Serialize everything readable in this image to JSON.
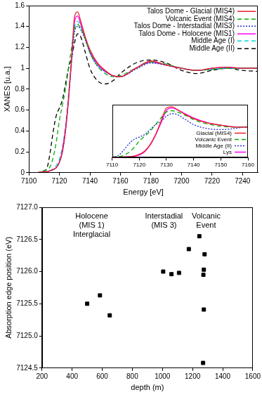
{
  "chart_data": [
    {
      "type": "line",
      "x_label": "Energy [eV]",
      "y_label": "XANES [u.a.]",
      "x": [
        7100,
        7105,
        7110,
        7112,
        7114,
        7116,
        7118,
        7120,
        7122,
        7124,
        7126,
        7128,
        7130,
        7132,
        7134,
        7137,
        7140,
        7145,
        7150,
        7155,
        7160,
        7170,
        7180,
        7190,
        7200,
        7210,
        7220,
        7230,
        7240,
        7250
      ],
      "series": [
        {
          "name": "Talos Dome - Glacial (MIS4)",
          "color": "#e8202a",
          "line_style": "solid",
          "values": [
            0,
            0,
            0.01,
            0.01,
            0.02,
            0.03,
            0.05,
            0.1,
            0.2,
            0.4,
            0.7,
            1.1,
            1.5,
            1.54,
            1.45,
            1.3,
            1.18,
            1.05,
            0.98,
            0.93,
            0.92,
            1.0,
            1.07,
            1.03,
            1.0,
            0.98,
            1.0,
            1.01,
            1.0,
            1.0
          ]
        },
        {
          "name": "Volcanic Event (MIS4)",
          "color": "#00b000",
          "line_style": "dashed",
          "values": [
            0,
            0,
            0.02,
            0.03,
            0.06,
            0.15,
            0.3,
            0.5,
            0.65,
            0.8,
            1.0,
            1.2,
            1.38,
            1.42,
            1.38,
            1.28,
            1.15,
            1.02,
            0.95,
            0.92,
            0.93,
            1.0,
            1.06,
            1.04,
            1.0,
            0.98,
            0.99,
            1.0,
            1.0,
            1.0
          ]
        },
        {
          "name": "Talos Dome - Interstadial (MIS3)",
          "color": "#1f2fd0",
          "line_style": "dotted",
          "values": [
            0,
            0,
            0.01,
            0.01,
            0.02,
            0.03,
            0.05,
            0.1,
            0.2,
            0.4,
            0.7,
            1.05,
            1.35,
            1.4,
            1.37,
            1.27,
            1.15,
            1.02,
            0.97,
            0.93,
            0.92,
            0.99,
            1.05,
            1.03,
            1.0,
            0.98,
            0.99,
            1.0,
            1.0,
            1.0
          ]
        },
        {
          "name": "Talos Dome - Holocene (MIS1)",
          "color": "#ff00ff",
          "line_style": "solid",
          "values": [
            0,
            0,
            0.01,
            0.01,
            0.02,
            0.03,
            0.05,
            0.1,
            0.22,
            0.42,
            0.72,
            1.1,
            1.45,
            1.5,
            1.42,
            1.28,
            1.16,
            1.04,
            0.97,
            0.93,
            0.92,
            1.0,
            1.06,
            1.03,
            1.0,
            0.98,
            1.0,
            1.01,
            1.0,
            1.0
          ]
        },
        {
          "name": "Middle Age (I)",
          "color": "#00d8d8",
          "line_style": "dashed",
          "values": [
            0,
            0,
            0.01,
            0.01,
            0.02,
            0.04,
            0.07,
            0.13,
            0.25,
            0.45,
            0.75,
            1.1,
            1.4,
            1.45,
            1.4,
            1.28,
            1.15,
            1.03,
            0.97,
            0.93,
            0.92,
            1.0,
            1.06,
            1.03,
            1.0,
            0.98,
            0.99,
            1.0,
            1.0,
            1.0
          ]
        },
        {
          "name": "Middle Age (II)",
          "color": "#000000",
          "line_style": "dashed",
          "values": [
            0,
            0,
            0.02,
            0.05,
            0.2,
            0.4,
            0.55,
            0.62,
            0.7,
            0.85,
            1.0,
            1.1,
            1.25,
            1.33,
            1.3,
            1.15,
            1.0,
            0.88,
            0.85,
            0.88,
            0.95,
            1.05,
            1.08,
            1.05,
            0.98,
            0.95,
            0.98,
            1.0,
            0.98,
            0.97
          ]
        }
      ],
      "xlim": [
        7100,
        7250
      ],
      "xticks": [
        7100,
        7120,
        7140,
        7160,
        7180,
        7200,
        7220,
        7240
      ],
      "ylim": [
        0,
        1.6
      ],
      "yticks": [
        0,
        0.2,
        0.4,
        0.6,
        0.8,
        1,
        1.2,
        1.4,
        1.6
      ],
      "grid": false,
      "legend": "top-right"
    },
    {
      "type": "line",
      "x": [
        7110,
        7112,
        7114,
        7116,
        7118,
        7120,
        7122,
        7124,
        7126,
        7128,
        7130,
        7132,
        7134,
        7137,
        7140,
        7145,
        7150,
        7155,
        7160
      ],
      "series": [
        {
          "name": "Glacial (MIS4)",
          "color": "#e8202a",
          "line_style": "solid",
          "values": [
            0.01,
            0.01,
            0.02,
            0.03,
            0.05,
            0.1,
            0.2,
            0.4,
            0.7,
            1.1,
            1.5,
            1.54,
            1.45,
            1.3,
            1.18,
            1.05,
            0.98,
            0.93,
            0.92
          ]
        },
        {
          "name": "Volcanic Event",
          "color": "#00b000",
          "line_style": "dashed",
          "values": [
            0.02,
            0.03,
            0.06,
            0.15,
            0.3,
            0.5,
            0.65,
            0.8,
            1.0,
            1.2,
            1.38,
            1.42,
            1.38,
            1.28,
            1.15,
            1.02,
            0.95,
            0.92,
            0.93
          ]
        },
        {
          "name": "Middle Age (II)",
          "color": "#1f2fd0",
          "line_style": "dotted",
          "values": [
            0.02,
            0.05,
            0.2,
            0.4,
            0.55,
            0.62,
            0.7,
            0.85,
            1.0,
            1.1,
            1.25,
            1.33,
            1.3,
            1.15,
            1.0,
            0.88,
            0.85,
            0.88,
            0.95
          ]
        },
        {
          "name": "Lys",
          "color": "#ff00ff",
          "line_style": "solid",
          "values": [
            0.01,
            0.01,
            0.02,
            0.03,
            0.04,
            0.08,
            0.18,
            0.38,
            0.68,
            1.05,
            1.42,
            1.5,
            1.45,
            1.32,
            1.2,
            1.06,
            0.98,
            0.93,
            0.92
          ]
        }
      ],
      "xlim": [
        7110,
        7160
      ],
      "xticks": [
        7110,
        7120,
        7130,
        7140,
        7150,
        7160
      ],
      "ylim": [
        0,
        1.6
      ],
      "tick_labels": "x",
      "grid": false,
      "legend": "bottom-right"
    },
    {
      "type": "scatter",
      "x_label": "depth (m)",
      "y_label": "Absorption edge position (eV)",
      "x": [
        500,
        585,
        650,
        1005,
        1060,
        1110,
        1175,
        1245,
        1280,
        1275,
        1272,
        1275,
        1270
      ],
      "values": [
        7125.5,
        7125.63,
        7125.32,
        7126.0,
        7125.96,
        7125.98,
        7126.35,
        7126.55,
        7126.27,
        7126.03,
        7125.95,
        7125.41,
        7124.58
      ],
      "color": "#000000",
      "marker": "square",
      "xlim": [
        200,
        1600
      ],
      "xticks": [
        200,
        400,
        600,
        800,
        1000,
        1200,
        1400,
        1600
      ],
      "ylim": [
        7124.5,
        7127
      ],
      "yticks": [
        7124.5,
        {
          "value": 7125,
          "label": "7125.0"
        },
        7125.5,
        {
          "value": 7126,
          "label": "7126.0"
        },
        7126.5,
        {
          "value": 7127,
          "label": "7127.0"
        }
      ],
      "grid": false,
      "annotations": [
        {
          "text": "Holocene\n(MIS 1)\nInterglacial",
          "x": 530,
          "y": 7126.92
        },
        {
          "text": "Interstadial\n(MIS 3)",
          "x": 1010,
          "y": 7126.92
        },
        {
          "text": "Volcanic\nEvent",
          "x": 1290,
          "y": 7126.92
        }
      ]
    }
  ]
}
